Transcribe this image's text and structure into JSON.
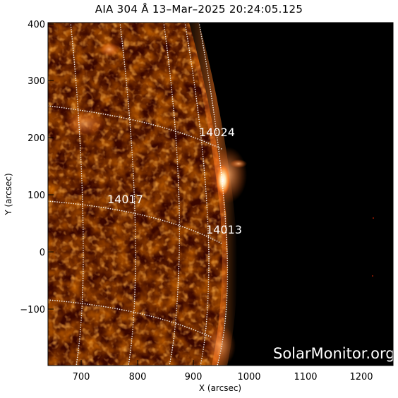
{
  "title": "AIA 304 Å 13–Mar–2025 20:24:05.125",
  "axes": {
    "xlabel": "X (arcsec)",
    "ylabel": "Y (arcsec)",
    "xticks": [
      "700",
      "800",
      "900",
      "1000",
      "1100",
      "1200"
    ],
    "yticks": [
      "400",
      "300",
      "200",
      "100",
      "0",
      "−100"
    ]
  },
  "regions": [
    {
      "label": "14024"
    },
    {
      "label": "14017"
    },
    {
      "label": "14013"
    }
  ],
  "watermark": "SolarMonitor.org",
  "colors": {
    "background": "#000000",
    "disk_dark": "#3a0600",
    "disk_mid": "#9a2a00",
    "disk_bright": "#ff8a3a",
    "flare": "#fff4dc",
    "grid": "#ffffff"
  }
}
